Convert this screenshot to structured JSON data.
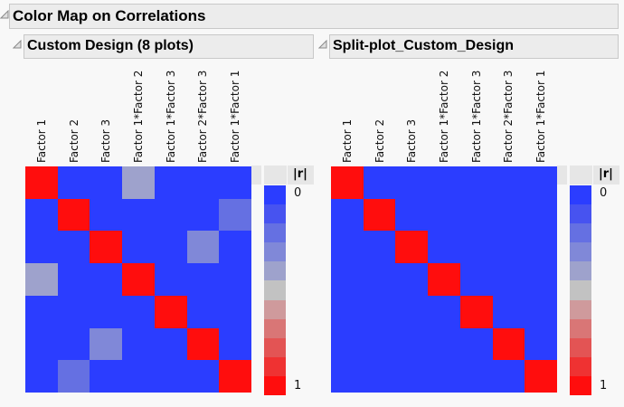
{
  "outer_header": {
    "title": "Color Map on Correlations"
  },
  "panels": [
    {
      "title": "Custom Design (8 plots)",
      "chart_data": {
        "type": "heatmap",
        "title": "Custom Design (8 plots)",
        "labels": [
          "Factor 1",
          "Factor 2",
          "Factor 3",
          "Factor 1*Factor 2",
          "Factor 1*Factor 3",
          "Factor 2*Factor 3",
          "Factor 1*Factor 1"
        ],
        "value_label": "|r|",
        "range": [
          0,
          1
        ],
        "matrix": [
          [
            1,
            0,
            0,
            0.4,
            0,
            0,
            0
          ],
          [
            0,
            1,
            0,
            0,
            0,
            0,
            0.2
          ],
          [
            0,
            0,
            1,
            0,
            0,
            0.3,
            0
          ],
          [
            0.4,
            0,
            0,
            1,
            0,
            0,
            0
          ],
          [
            0,
            0,
            0,
            0,
            1,
            0,
            0
          ],
          [
            0,
            0,
            0.3,
            0,
            0,
            1,
            0
          ],
          [
            0,
            0.2,
            0,
            0,
            0,
            0,
            1
          ]
        ]
      }
    },
    {
      "title": "Split-plot_Custom_Design",
      "chart_data": {
        "type": "heatmap",
        "title": "Split-plot_Custom_Design",
        "labels": [
          "Factor 1",
          "Factor 2",
          "Factor 3",
          "Factor 1*Factor 2",
          "Factor 1*Factor 3",
          "Factor 2*Factor 3",
          "Factor 1*Factor 1"
        ],
        "value_label": "|r|",
        "range": [
          0,
          1
        ],
        "matrix": [
          [
            1,
            0,
            0,
            0,
            0,
            0,
            0
          ],
          [
            0,
            1,
            0,
            0,
            0,
            0,
            0
          ],
          [
            0,
            0,
            1,
            0,
            0,
            0,
            0
          ],
          [
            0,
            0,
            0,
            1,
            0,
            0,
            0
          ],
          [
            0,
            0,
            0,
            0,
            1,
            0,
            0
          ],
          [
            0,
            0,
            0,
            0,
            0,
            1,
            0
          ],
          [
            0,
            0,
            0,
            0,
            0,
            0,
            1
          ]
        ]
      }
    }
  ],
  "legend": {
    "title": "|r|",
    "min_label": "0",
    "max_label": "1",
    "colors": [
      "#2b3dff",
      "#4753f0",
      "#6570e2",
      "#8088d8",
      "#9ea2cc",
      "#c2c2c2",
      "#cf9a9c",
      "#d97676",
      "#e35454",
      "#ef3232",
      "#ff0d0d"
    ]
  }
}
